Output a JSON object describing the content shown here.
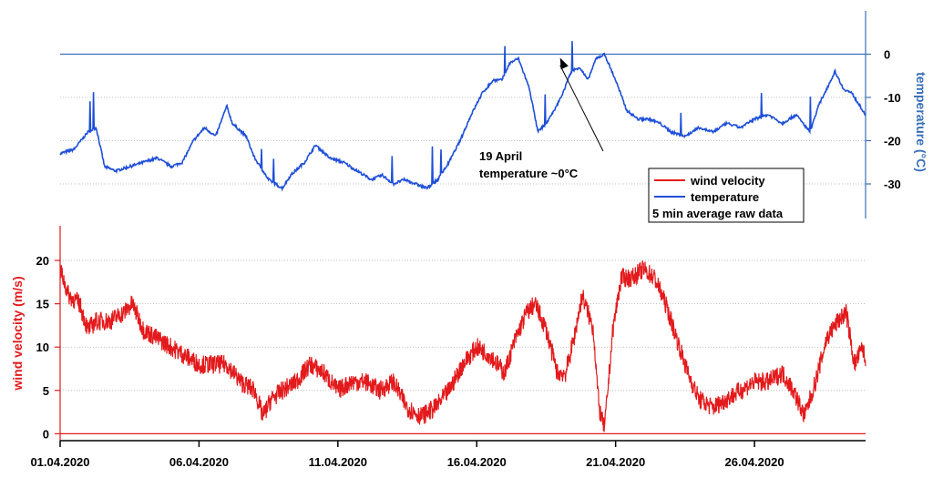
{
  "chart_data": {
    "type": "line",
    "x_unit": "date",
    "x_ticks": [
      "01.04.2020",
      "06.04.2020",
      "11.04.2020",
      "16.04.2020",
      "21.04.2020",
      "26.04.2020"
    ],
    "x_range": [
      "01.04.2020",
      "30.04.2020"
    ],
    "legend": {
      "position": "right",
      "entries": [
        "wind velocity",
        "temperature"
      ],
      "note": "5 min average raw data"
    },
    "annotation": {
      "lines": [
        "19 April",
        "temperature ~0°C"
      ],
      "points_to": {
        "x": "19.04.2020",
        "y": 0
      }
    },
    "colors": {
      "wind": "#e31a1c",
      "temperature": "#1f4fd8",
      "temp_axis": "#3a6fb8"
    },
    "panels": [
      {
        "name": "temperature",
        "ylabel": "temperature (°C)",
        "ylim": [
          -38,
          10
        ],
        "yticks": [
          0,
          -10,
          -20,
          -30
        ],
        "axis_side": "right",
        "grid": true,
        "series": [
          {
            "name": "temperature",
            "x": [
              0,
              0.5,
              1,
              1.3,
              1.6,
              2,
              2.5,
              3,
              3.5,
              4,
              4.4,
              4.8,
              5.2,
              5.6,
              6.0,
              6.2,
              6.7,
              7.0,
              7.5,
              8.0,
              8.3,
              8.8,
              9.2,
              9.7,
              10.2,
              10.7,
              11.2,
              11.6,
              12.0,
              12.4,
              12.8,
              13.2,
              13.6,
              14.0,
              14.4,
              14.8,
              15.2,
              15.6,
              15.9,
              16.2,
              16.5,
              16.9,
              17.2,
              17.5,
              17.8,
              18.1,
              18.4,
              18.7,
              19.0,
              19.3,
              19.6,
              20.0,
              20.4,
              20.8,
              21.2,
              21.6,
              22.0,
              22.5,
              23.0,
              23.5,
              24.0,
              24.5,
              25.0,
              25.5,
              26.0,
              26.5,
              27.0,
              27.3,
              27.6,
              27.9,
              28.2,
              28.5,
              28.8,
              29.0
            ],
            "y": [
              -23,
              -22,
              -18,
              -17,
              -26,
              -27,
              -26,
              -25,
              -24,
              -26,
              -25,
              -20,
              -17,
              -19,
              -12,
              -16,
              -19,
              -24,
              -29,
              -31,
              -28,
              -25,
              -21,
              -24,
              -25,
              -27,
              -29,
              -28,
              -30,
              -29,
              -30,
              -31,
              -29,
              -25,
              -20,
              -14,
              -9,
              -6,
              -6,
              -2,
              -1,
              -8,
              -18,
              -16,
              -13,
              -9,
              -4,
              -3,
              -6,
              -1,
              0,
              -6,
              -13,
              -15,
              -15,
              -16,
              -18,
              -19,
              -17,
              -18,
              -16,
              -17,
              -15,
              -14,
              -16,
              -14,
              -18,
              -12,
              -8,
              -4,
              -8,
              -9,
              -12,
              -14
            ]
          }
        ]
      },
      {
        "name": "wind velocity",
        "ylabel": "wind velocity (m/s)",
        "ylim": [
          -0.8,
          24
        ],
        "yticks": [
          0,
          5,
          10,
          15,
          20
        ],
        "axis_side": "left",
        "grid": true,
        "series": [
          {
            "name": "wind velocity",
            "x": [
              0,
              0.3,
              0.7,
              1.0,
              1.3,
              1.8,
              2.3,
              2.6,
              3.0,
              3.5,
              4.0,
              4.5,
              5.0,
              5.5,
              6.0,
              6.5,
              7.0,
              7.3,
              7.6,
              8.0,
              8.5,
              9.0,
              9.5,
              10.0,
              10.5,
              11.0,
              11.5,
              12.0,
              12.5,
              13.0,
              13.5,
              14.0,
              14.5,
              15.0,
              15.5,
              16.0,
              16.4,
              16.8,
              17.1,
              17.5,
              17.9,
              18.2,
              18.5,
              18.8,
              19.2,
              19.4,
              19.6,
              19.9,
              20.2,
              20.6,
              21.0,
              21.4,
              21.8,
              22.2,
              22.6,
              23.0,
              23.5,
              24.0,
              24.5,
              25.0,
              25.5,
              26.0,
              26.4,
              26.8,
              27.2,
              27.6,
              28.0,
              28.3,
              28.6,
              28.9,
              29.0
            ],
            "y": [
              19,
              16,
              15,
              12,
              13,
              13,
              14,
              15,
              12,
              11,
              10,
              9,
              8,
              8,
              8,
              6,
              5,
              2,
              4,
              5,
              6,
              8,
              7,
              5,
              6,
              6,
              5,
              6,
              3,
              2,
              3,
              5,
              8,
              10,
              9,
              7,
              11,
              14,
              15,
              12,
              7,
              7,
              11,
              16,
              12,
              3,
              0.5,
              12,
              18,
              18,
              19,
              18,
              15,
              11,
              7,
              4,
              3,
              4,
              5,
              6,
              6,
              7,
              5,
              2,
              6,
              11,
              13,
              14,
              8,
              10,
              8
            ]
          }
        ]
      }
    ]
  }
}
